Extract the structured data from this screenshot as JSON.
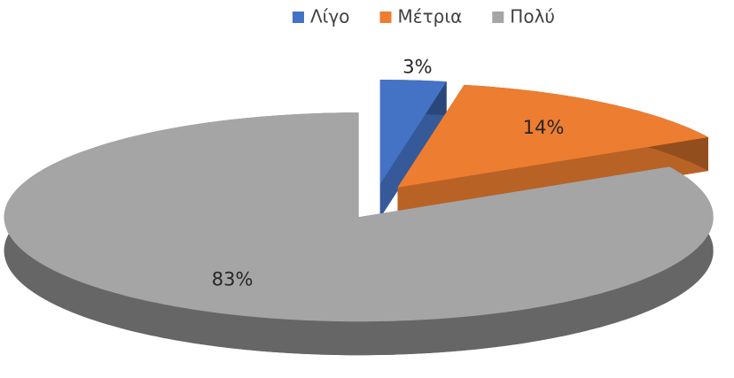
{
  "chart_data": {
    "type": "pie",
    "categories": [
      "Λίγο",
      "Μέτρια",
      "Πολύ"
    ],
    "values": [
      3,
      14,
      83
    ],
    "value_labels": [
      "3%",
      "14%",
      "83%"
    ],
    "colors": [
      "#4472c4",
      "#ed7d31",
      "#a5a5a5"
    ],
    "legend": "top"
  }
}
